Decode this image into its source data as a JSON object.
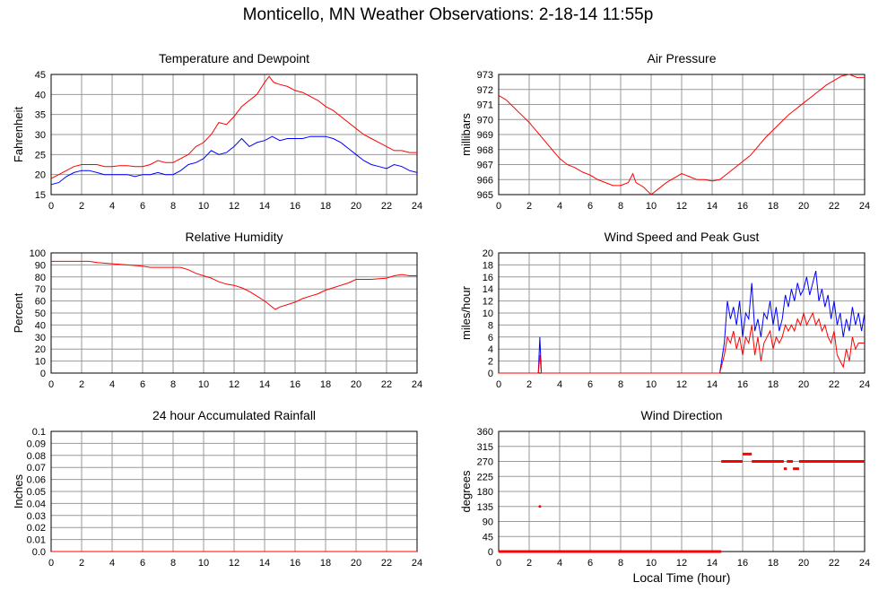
{
  "page": {
    "title": "Monticello, MN Weather Observations: 2-18-14 11:55p",
    "xlabel": "Local Time (hour)"
  },
  "colors": {
    "red": "#ff0000",
    "blue": "#0000ff",
    "grid": "#999999"
  },
  "chart_data": [
    {
      "id": "temp",
      "type": "line",
      "title": "Temperature and Dewpoint",
      "ylabel": "Fahrenheit",
      "xlim": [
        0,
        24
      ],
      "ylim": [
        15,
        45
      ],
      "xticks": [
        0,
        2,
        4,
        6,
        8,
        10,
        12,
        14,
        16,
        18,
        20,
        22,
        24
      ],
      "yticks": [
        15,
        20,
        25,
        30,
        35,
        40,
        45
      ],
      "series": [
        {
          "color": "red",
          "x": [
            0,
            0.5,
            1,
            1.5,
            2,
            2.5,
            3,
            3.5,
            4,
            4.5,
            5,
            5.5,
            6,
            6.5,
            7,
            7.5,
            8,
            8.5,
            9,
            9.5,
            10,
            10.5,
            11,
            11.5,
            12,
            12.5,
            13,
            13.5,
            14,
            14.3,
            14.6,
            15,
            15.5,
            16,
            16.5,
            17,
            17.5,
            18,
            18.5,
            19,
            19.5,
            20,
            20.5,
            21,
            21.5,
            22,
            22.5,
            23,
            23.5,
            24
          ],
          "y": [
            19,
            20,
            21,
            22,
            22.5,
            22.5,
            22.5,
            22,
            22,
            22.2,
            22.2,
            22,
            22,
            22.5,
            23.5,
            23,
            23,
            24,
            25,
            27,
            28,
            30,
            33,
            32.5,
            34.5,
            37,
            38.5,
            40,
            43,
            44.5,
            43,
            42.5,
            42,
            41,
            40.5,
            39.5,
            38.5,
            37,
            36,
            34.5,
            33,
            31.5,
            30,
            29,
            28,
            27,
            26,
            26,
            25.5,
            25.5
          ]
        },
        {
          "color": "blue",
          "x": [
            0,
            0.5,
            1,
            1.5,
            2,
            2.5,
            3,
            3.5,
            4,
            4.5,
            5,
            5.5,
            6,
            6.5,
            7,
            7.5,
            8,
            8.5,
            9,
            9.5,
            10,
            10.5,
            11,
            11.5,
            12,
            12.5,
            13,
            13.5,
            14,
            14.5,
            15,
            15.5,
            16,
            16.5,
            17,
            17.5,
            18,
            18.5,
            19,
            19.5,
            20,
            20.5,
            21,
            21.5,
            22,
            22.5,
            23,
            23.5,
            24
          ],
          "y": [
            17.5,
            18,
            19.5,
            20.5,
            21,
            21,
            20.5,
            20,
            20,
            20,
            20,
            19.5,
            20,
            20,
            20.5,
            20,
            20,
            21,
            22.5,
            23,
            24,
            26,
            25,
            25.5,
            27,
            29,
            27,
            28,
            28.5,
            29.5,
            28.5,
            29,
            29,
            29,
            29.5,
            29.5,
            29.5,
            29,
            28,
            26.5,
            25,
            23.5,
            22.5,
            22,
            21.5,
            22.5,
            22,
            21,
            20.5
          ]
        }
      ]
    },
    {
      "id": "pressure",
      "type": "line",
      "title": "Air Pressure",
      "ylabel": "millibars",
      "xlim": [
        0,
        24
      ],
      "ylim": [
        965,
        973
      ],
      "xticks": [
        0,
        2,
        4,
        6,
        8,
        10,
        12,
        14,
        16,
        18,
        20,
        22,
        24
      ],
      "yticks": [
        965,
        966,
        967,
        968,
        969,
        970,
        971,
        972,
        973
      ],
      "series": [
        {
          "color": "red",
          "x": [
            0,
            0.5,
            1,
            1.5,
            2,
            2.5,
            3,
            3.5,
            4,
            4.5,
            5,
            5.5,
            6,
            6.5,
            7,
            7.5,
            8,
            8.5,
            8.8,
            9,
            9.5,
            10,
            10.5,
            11,
            11.5,
            12,
            12.5,
            13,
            13.5,
            14,
            14.5,
            15,
            15.5,
            16,
            16.5,
            17,
            17.5,
            18,
            18.5,
            19,
            19.5,
            20,
            20.5,
            21,
            21.5,
            22,
            22.5,
            23,
            23.5,
            24
          ],
          "y": [
            971.6,
            971.3,
            970.8,
            970.3,
            969.8,
            969.2,
            968.6,
            968,
            967.4,
            967,
            966.8,
            966.5,
            966.3,
            966,
            965.8,
            965.6,
            965.6,
            965.8,
            966.4,
            965.8,
            965.5,
            965,
            965.4,
            965.8,
            966.1,
            966.4,
            966.2,
            966,
            966,
            965.9,
            966,
            966.4,
            966.8,
            967.2,
            967.6,
            968.2,
            968.8,
            969.3,
            969.8,
            970.3,
            970.7,
            971.1,
            971.5,
            971.9,
            972.3,
            972.6,
            972.9,
            973,
            972.8,
            972.8
          ]
        }
      ]
    },
    {
      "id": "humidity",
      "type": "line",
      "title": "Relative Humidity",
      "ylabel": "Percent",
      "xlim": [
        0,
        24
      ],
      "ylim": [
        0,
        100
      ],
      "xticks": [
        0,
        2,
        4,
        6,
        8,
        10,
        12,
        14,
        16,
        18,
        20,
        22,
        24
      ],
      "yticks": [
        0,
        10,
        20,
        30,
        40,
        50,
        60,
        70,
        80,
        90,
        100
      ],
      "series": [
        {
          "color": "red",
          "x": [
            0,
            1,
            2,
            2.5,
            3,
            4,
            5,
            6,
            6.5,
            7,
            7.5,
            8,
            8.5,
            9,
            9.5,
            10,
            10.5,
            11,
            11.5,
            12,
            12.5,
            13,
            13.5,
            14,
            14.3,
            14.7,
            15,
            15.5,
            16,
            16.5,
            17,
            17.5,
            18,
            18.5,
            19,
            19.5,
            20,
            21,
            22,
            22.5,
            23,
            23.5,
            24
          ],
          "y": [
            93,
            93,
            93,
            93,
            92,
            91,
            90,
            89,
            88,
            88,
            88,
            88,
            88,
            86,
            83,
            81,
            79,
            76,
            74,
            73,
            71,
            68,
            64,
            60,
            57,
            53,
            55,
            57,
            59,
            62,
            64,
            66,
            69,
            71,
            73,
            75,
            78,
            78,
            79,
            81,
            82,
            81,
            81
          ]
        }
      ]
    },
    {
      "id": "wind",
      "type": "line",
      "title": "Wind Speed and Peak Gust",
      "ylabel": "miles/hour",
      "xlim": [
        0,
        24
      ],
      "ylim": [
        0,
        20
      ],
      "xticks": [
        0,
        2,
        4,
        6,
        8,
        10,
        12,
        14,
        16,
        18,
        20,
        22,
        24
      ],
      "yticks": [
        0,
        2,
        4,
        6,
        8,
        10,
        12,
        14,
        16,
        18,
        20
      ],
      "series": [
        {
          "color": "blue",
          "x": [
            0,
            2.6,
            2.7,
            2.8,
            14.5,
            14.8,
            15,
            15.2,
            15.4,
            15.6,
            15.8,
            16,
            16.2,
            16.4,
            16.6,
            16.8,
            17,
            17.2,
            17.4,
            17.6,
            17.8,
            18,
            18.2,
            18.4,
            18.6,
            18.8,
            19,
            19.2,
            19.4,
            19.6,
            19.8,
            20,
            20.2,
            20.4,
            20.6,
            20.8,
            21,
            21.2,
            21.4,
            21.6,
            21.8,
            22,
            22.2,
            22.4,
            22.6,
            22.8,
            23,
            23.2,
            23.4,
            23.6,
            23.8,
            24
          ],
          "y": [
            0,
            0,
            6,
            0,
            0,
            5,
            12,
            9,
            11,
            8,
            12,
            6,
            10,
            9,
            15,
            7,
            9,
            6,
            10,
            9,
            12,
            8,
            11,
            7,
            9,
            13,
            11,
            14,
            12,
            15,
            13,
            14,
            16,
            13,
            15,
            17,
            12,
            14,
            11,
            13,
            9,
            12,
            8,
            10,
            6,
            9,
            7,
            11,
            8,
            10,
            7,
            10
          ]
        },
        {
          "color": "red",
          "x": [
            0,
            2.6,
            2.7,
            2.8,
            14.5,
            14.8,
            15,
            15.2,
            15.4,
            15.6,
            15.8,
            16,
            16.2,
            16.4,
            16.6,
            16.8,
            17,
            17.2,
            17.4,
            17.6,
            17.8,
            18,
            18.2,
            18.4,
            18.6,
            18.8,
            19,
            19.2,
            19.4,
            19.6,
            19.8,
            20,
            20.2,
            20.4,
            20.6,
            20.8,
            21,
            21.2,
            21.4,
            21.6,
            21.8,
            22,
            22.2,
            22.4,
            22.6,
            22.8,
            23,
            23.2,
            23.4,
            23.6,
            23.8,
            24
          ],
          "y": [
            0,
            0,
            3,
            0,
            0,
            3,
            6,
            5,
            7,
            4,
            6,
            3,
            6,
            5,
            8,
            3,
            6,
            2,
            5,
            6,
            7,
            4,
            6,
            5,
            6,
            8,
            7,
            8,
            7,
            9,
            8,
            10,
            8,
            9,
            10,
            8,
            9,
            7,
            8,
            6,
            5,
            7,
            3,
            2,
            1,
            4,
            2,
            6,
            4,
            5,
            5,
            5
          ]
        }
      ]
    },
    {
      "id": "rain",
      "type": "line",
      "title": "24 hour Accumulated Rainfall",
      "ylabel": "Inches",
      "xlim": [
        0,
        24
      ],
      "ylim": [
        0,
        0.1
      ],
      "xticks": [
        0,
        2,
        4,
        6,
        8,
        10,
        12,
        14,
        16,
        18,
        20,
        22,
        24
      ],
      "yticks": [
        0,
        0.01,
        0.02,
        0.03,
        0.04,
        0.05,
        0.06,
        0.07,
        0.08,
        0.09,
        0.1
      ],
      "ytick_labels": [
        "0.0",
        "0.01",
        "0.02",
        "0.03",
        "0.04",
        "0.05",
        "0.06",
        "0.07",
        "0.08",
        "0.09",
        "0.1"
      ],
      "series": [
        {
          "color": "red",
          "x": [
            0,
            24
          ],
          "y": [
            0,
            0
          ]
        }
      ]
    },
    {
      "id": "direction",
      "type": "scatter",
      "title": "Wind Direction",
      "ylabel": "degrees",
      "xlim": [
        0,
        24
      ],
      "ylim": [
        0,
        360
      ],
      "xticks": [
        0,
        2,
        4,
        6,
        8,
        10,
        12,
        14,
        16,
        18,
        20,
        22,
        24
      ],
      "yticks": [
        0,
        45,
        90,
        135,
        180,
        225,
        270,
        315,
        360
      ],
      "segments": [
        {
          "x0": 0,
          "x1": 14.6,
          "y": 0
        },
        {
          "x0": 14.6,
          "x1": 16,
          "y": 270
        },
        {
          "x0": 16,
          "x1": 16.6,
          "y": 292
        },
        {
          "x0": 16.6,
          "x1": 18.7,
          "y": 270
        },
        {
          "x0": 18.7,
          "x1": 18.9,
          "y": 248
        },
        {
          "x0": 18.9,
          "x1": 19.3,
          "y": 270
        },
        {
          "x0": 19.3,
          "x1": 19.7,
          "y": 248
        },
        {
          "x0": 19.7,
          "x1": 24,
          "y": 270
        }
      ],
      "points": [
        {
          "x": 2.7,
          "y": 135
        }
      ]
    }
  ]
}
